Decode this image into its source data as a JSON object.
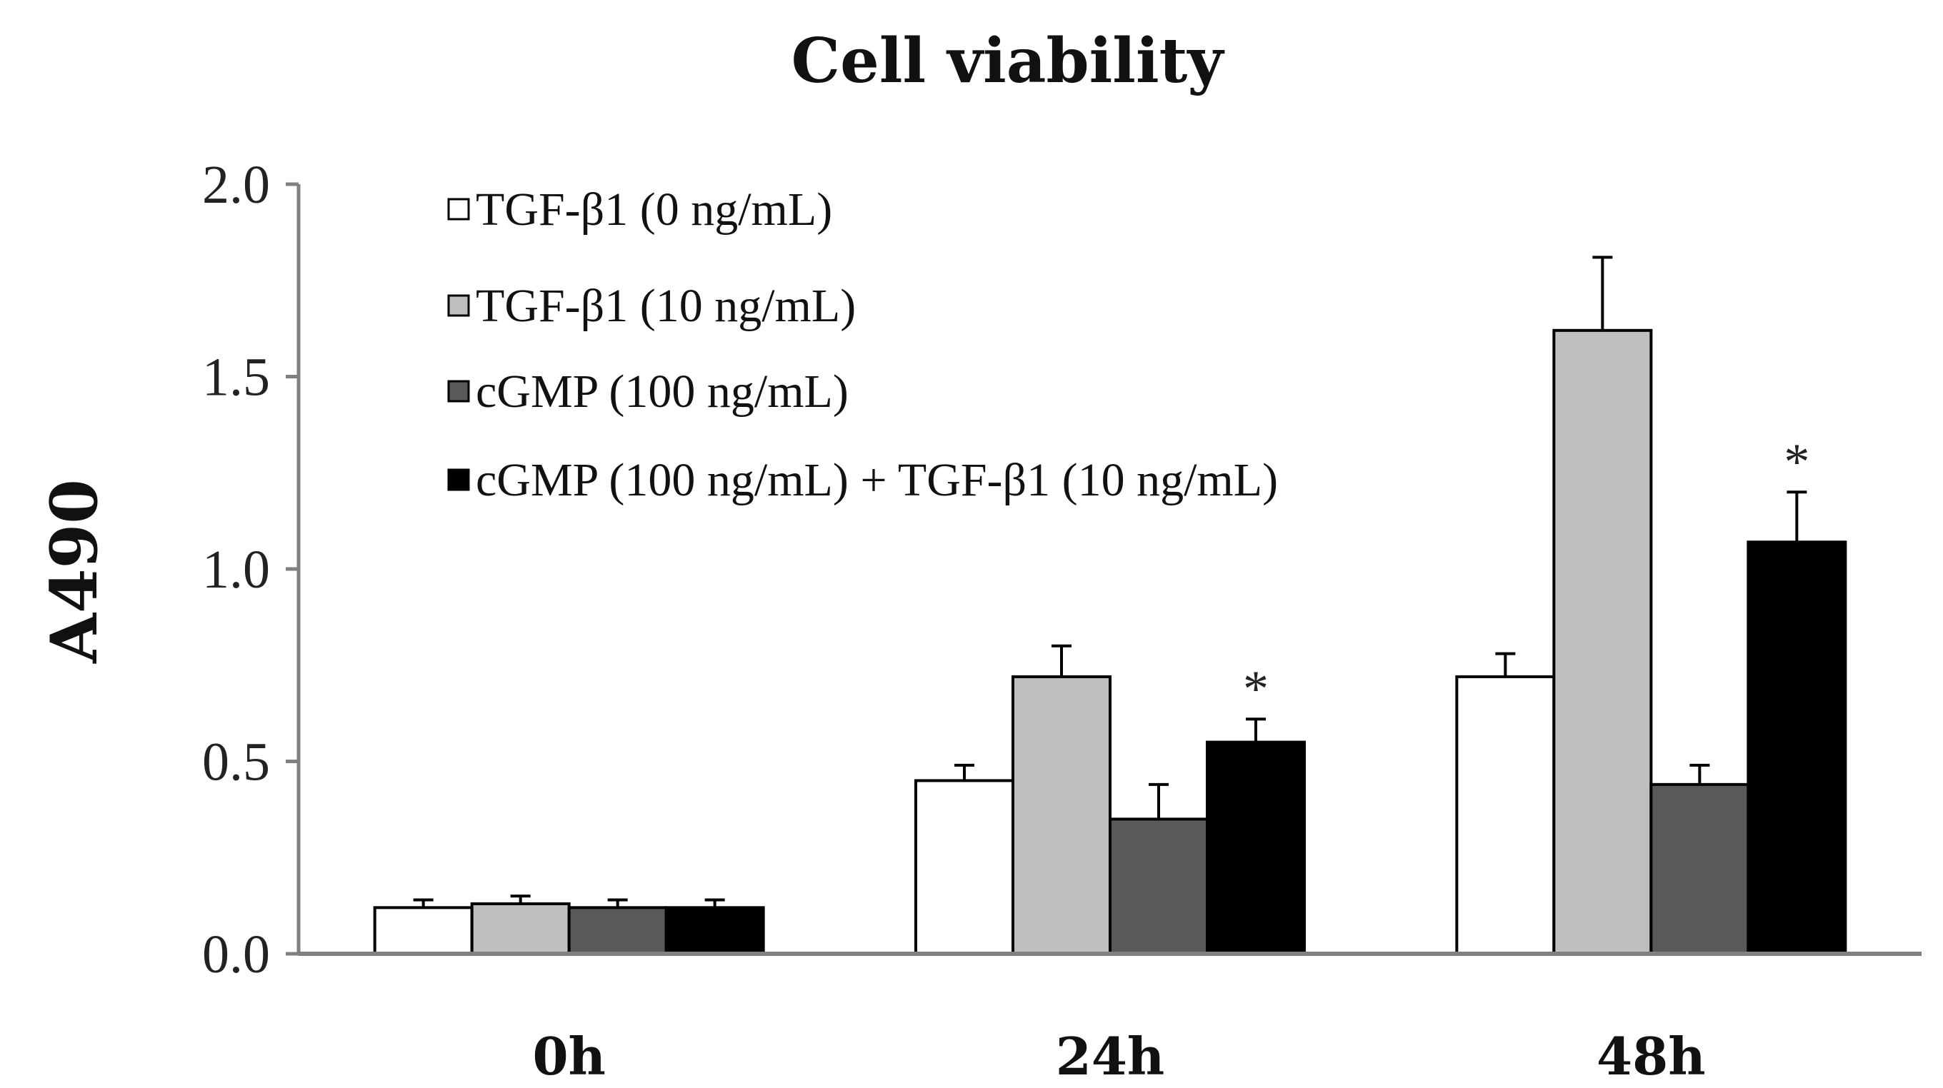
{
  "chart_data": {
    "type": "bar",
    "title": "Cell viability",
    "xlabel": "",
    "ylabel": "A490",
    "ylim": [
      0,
      2.0
    ],
    "yticks": [
      "0.0",
      "0.5",
      "1.0",
      "1.5",
      "2.0"
    ],
    "ytick_values": [
      0,
      0.5,
      1.0,
      1.5,
      2.0
    ],
    "categories": [
      "0h",
      "24h",
      "48h"
    ],
    "legend_position": "top-left",
    "series": [
      {
        "name": "TGF-β1 (0 ng/mL)",
        "color": "#ffffff",
        "values": [
          0.12,
          0.45,
          0.72
        ],
        "errors": [
          0.02,
          0.04,
          0.06
        ],
        "significance": [
          "",
          "",
          ""
        ]
      },
      {
        "name": "TGF-β1 (10 ng/mL)",
        "color": "#bfbfbf",
        "values": [
          0.13,
          0.72,
          1.62
        ],
        "errors": [
          0.02,
          0.08,
          0.19
        ],
        "significance": [
          "",
          "",
          ""
        ]
      },
      {
        "name": "cGMP (100 ng/mL)",
        "color": "#595959",
        "values": [
          0.12,
          0.35,
          0.44
        ],
        "errors": [
          0.02,
          0.09,
          0.05
        ],
        "significance": [
          "",
          "",
          ""
        ]
      },
      {
        "name": "cGMP (100 ng/mL) + TGF-β1 (10 ng/mL)",
        "color": "#000000",
        "values": [
          0.12,
          0.55,
          1.07
        ],
        "errors": [
          0.02,
          0.06,
          0.13
        ],
        "significance": [
          "",
          "*",
          "*"
        ]
      }
    ]
  }
}
